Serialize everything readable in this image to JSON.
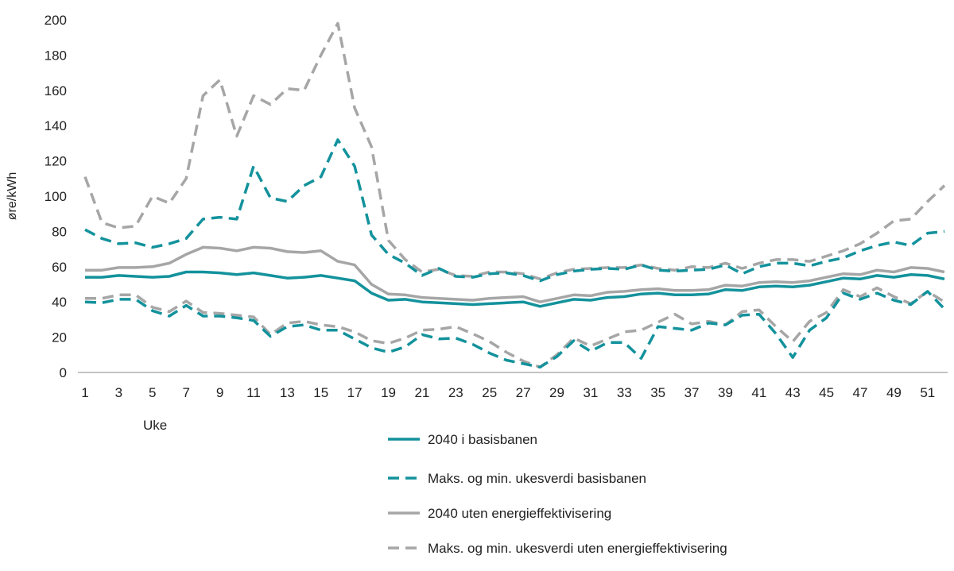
{
  "chart_data": {
    "type": "line",
    "title": "",
    "xlabel": "Uke",
    "ylabel": "øre/kWh",
    "ylim": [
      0,
      200
    ],
    "yticks": [
      0,
      20,
      40,
      60,
      80,
      100,
      120,
      140,
      160,
      180,
      200
    ],
    "xticks": [
      1,
      3,
      5,
      7,
      9,
      11,
      13,
      15,
      17,
      19,
      21,
      23,
      25,
      27,
      29,
      31,
      33,
      35,
      37,
      39,
      41,
      43,
      45,
      47,
      49,
      51
    ],
    "x_range": [
      1,
      52
    ],
    "grid": false,
    "legend_placement": "bottom",
    "colors": {
      "teal": "#13929c",
      "gray": "#a6a6a6"
    },
    "legend": [
      {
        "label": "2040 i basisbanen",
        "color": "#13929c",
        "dashed": false
      },
      {
        "label": "Maks. og min. ukesverdi basisbanen",
        "color": "#13929c",
        "dashed": true
      },
      {
        "label": "2040 uten energieffektivisering",
        "color": "#a6a6a6",
        "dashed": false
      },
      {
        "label": "Maks. og min. ukesverdi uten energieffektivisering",
        "color": "#a6a6a6",
        "dashed": true
      }
    ],
    "series": [
      {
        "legend_index": 3,
        "color": "#a6a6a6",
        "dashed": true,
        "values": [
          111,
          85,
          82,
          83,
          100,
          96,
          110,
          157,
          166,
          134,
          157,
          152,
          161,
          160,
          180,
          198,
          150,
          128,
          75,
          64,
          57,
          58.5,
          55,
          54.5,
          57,
          57,
          56,
          53,
          56.5,
          58.5,
          59,
          59.5,
          59.5,
          61,
          59,
          58,
          60,
          59.5,
          62,
          59,
          62,
          64,
          64,
          63,
          66,
          69,
          73,
          79,
          86,
          87,
          97,
          106
        ]
      },
      {
        "legend_index": 3,
        "color": "#a6a6a6",
        "dashed": true,
        "values": [
          42,
          42,
          44,
          44,
          37,
          34.5,
          40.5,
          34,
          33.5,
          32.5,
          31.5,
          21.5,
          28,
          29,
          27,
          26,
          23,
          18,
          16.5,
          19.5,
          24,
          24.5,
          26,
          22,
          17.5,
          11.5,
          6.5,
          3,
          10,
          19.5,
          15,
          19,
          23,
          24,
          28.5,
          33,
          27.5,
          29,
          27,
          34.5,
          35.5,
          26,
          17.5,
          29,
          34,
          47,
          43,
          48,
          43,
          39,
          46,
          40
        ]
      },
      {
        "legend_index": 2,
        "color": "#a6a6a6",
        "dashed": false,
        "values": [
          58,
          58,
          59.5,
          59.5,
          60,
          62,
          67,
          71,
          70.5,
          69,
          71,
          70.5,
          68.5,
          68,
          69,
          63,
          61,
          50,
          44.5,
          44,
          42.5,
          42,
          41.5,
          41,
          42,
          42.5,
          43,
          40,
          42,
          44,
          43.5,
          45.5,
          46,
          47,
          47.5,
          46.5,
          46.5,
          47,
          49.5,
          49,
          51,
          51.5,
          51,
          52,
          54,
          56,
          55.5,
          58,
          57,
          59.5,
          59,
          57
        ]
      },
      {
        "legend_index": 1,
        "color": "#13929c",
        "dashed": true,
        "values": [
          81,
          76,
          73,
          73.5,
          71,
          73,
          76,
          87,
          88,
          87,
          117,
          99,
          97,
          106,
          111,
          132,
          117,
          78,
          67,
          62,
          55,
          59,
          54.5,
          54,
          56,
          56.5,
          55,
          52,
          55.5,
          57.5,
          58.5,
          59,
          58.5,
          61,
          58,
          57.5,
          58,
          58.5,
          61,
          56,
          60,
          62,
          62,
          60.5,
          63,
          65,
          69,
          72,
          74,
          72,
          79,
          80
        ]
      },
      {
        "legend_index": 1,
        "color": "#13929c",
        "dashed": true,
        "values": [
          40,
          39.5,
          41.5,
          41.5,
          35,
          32,
          38,
          32,
          32,
          31,
          29.5,
          20.5,
          26,
          27,
          24,
          24,
          19,
          14,
          11.5,
          14.5,
          21.5,
          19,
          19.5,
          16,
          11,
          7,
          5,
          3,
          9,
          18,
          12,
          17,
          17,
          8,
          26,
          25,
          24,
          28,
          27,
          32.5,
          33,
          22,
          8.5,
          24,
          31,
          45,
          41.5,
          45,
          41,
          38.5,
          46,
          36
        ]
      },
      {
        "legend_index": 0,
        "color": "#13929c",
        "dashed": false,
        "values": [
          54,
          54,
          55,
          54.5,
          54,
          54.5,
          57,
          57,
          56.5,
          55.5,
          56.5,
          55,
          53.5,
          54,
          55,
          53.5,
          52,
          45,
          41,
          41.5,
          40,
          39.5,
          39,
          38.5,
          39,
          39.5,
          40,
          37.5,
          39.5,
          41.5,
          41,
          42.5,
          43,
          44.5,
          45,
          44,
          44,
          44.5,
          47,
          46.5,
          48.5,
          49,
          48.5,
          49.5,
          51.5,
          53.5,
          53,
          55,
          54,
          55.5,
          55,
          53
        ]
      }
    ]
  }
}
